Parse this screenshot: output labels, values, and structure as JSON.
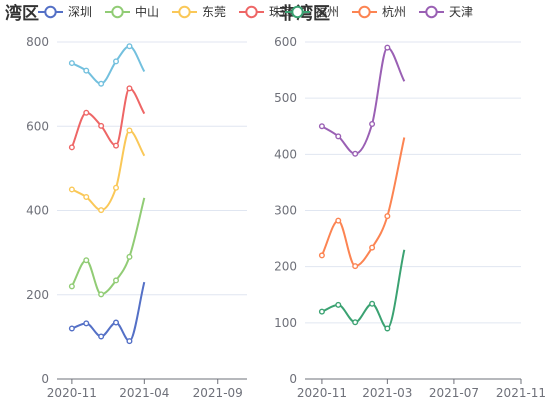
{
  "chart_data": [
    {
      "type": "line",
      "title": "湾区",
      "legend_position": "top",
      "grid": true,
      "xlim": [
        "2020-10-01",
        "2021-11-01"
      ],
      "x_ticks": [
        "2020-11",
        "2021-04",
        "2021-09"
      ],
      "ylim": [
        0,
        800
      ],
      "y_ticks": [
        0,
        200,
        400,
        600,
        800
      ],
      "x": [
        "2020-11-01",
        "2020-12-01",
        "2021-01-01",
        "2021-02-01",
        "2021-03-01"
      ],
      "series": [
        {
          "name": "深圳",
          "color": "#5470c6",
          "values": [
            120,
            132,
            101,
            134,
            90
          ],
          "end": {
            "x": "2021-04-01",
            "y": 230
          }
        },
        {
          "name": "中山",
          "color": "#91cc75",
          "values": [
            220,
            282,
            201,
            234,
            290
          ],
          "end": {
            "x": "2021-04-01",
            "y": 430
          }
        },
        {
          "name": "东莞",
          "color": "#fac858",
          "values": [
            450,
            432,
            401,
            454,
            590
          ],
          "end": {
            "x": "2021-04-01",
            "y": 530
          }
        },
        {
          "name": "珠海",
          "color": "#ee6666",
          "values": [
            550,
            632,
            601,
            554,
            690
          ],
          "end": {
            "x": "2021-04-01",
            "y": 630
          }
        },
        {
          "name": "",
          "color": "#73c0de",
          "values": [
            750,
            732,
            701,
            754,
            790
          ],
          "end": {
            "x": "2021-04-01",
            "y": 730
          }
        }
      ]
    },
    {
      "type": "line",
      "title": "非湾区",
      "legend_position": "top",
      "grid": true,
      "xlim": [
        "2020-10-01",
        "2021-11-01"
      ],
      "x_ticks": [
        "2020-11",
        "2021-03",
        "2021-07",
        "2021-11"
      ],
      "ylim": [
        0,
        600
      ],
      "y_ticks": [
        0,
        100,
        200,
        300,
        400,
        500,
        600
      ],
      "x": [
        "2020-11-01",
        "2020-12-01",
        "2021-01-01",
        "2021-02-01",
        "2021-03-01"
      ],
      "series": [
        {
          "name": "福州",
          "color": "#3ba272",
          "values": [
            120,
            132,
            101,
            134,
            90
          ],
          "end": {
            "x": "2021-04-01",
            "y": 230
          }
        },
        {
          "name": "杭州",
          "color": "#fc8452",
          "values": [
            220,
            282,
            201,
            234,
            290
          ],
          "end": {
            "x": "2021-04-01",
            "y": 430
          }
        },
        {
          "name": "天津",
          "color": "#9a60b4",
          "values": [
            450,
            432,
            401,
            454,
            590
          ],
          "end": {
            "x": "2021-04-01",
            "y": 530
          }
        }
      ]
    }
  ]
}
